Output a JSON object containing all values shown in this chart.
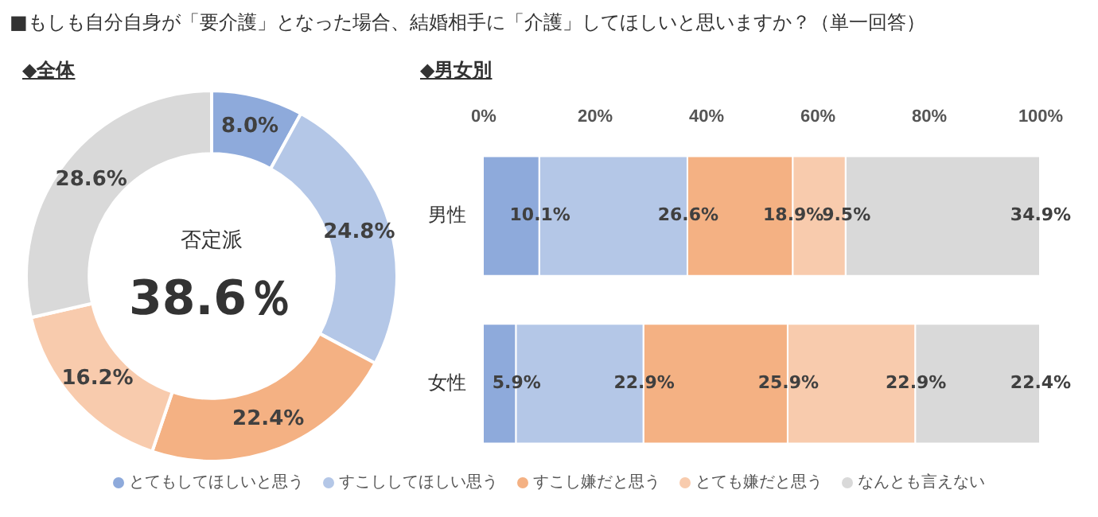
{
  "chart_data": [
    {
      "type": "donut",
      "title": "■もしも自分自身が「要介護」となった場合、結婚相手に「介護」してほしいと思いますか？（単一回答）",
      "subtitle": "◆全体",
      "categories": [
        "とてもしてほしいと思う",
        "すこししてほしい思う",
        "すこし嫌だと思う",
        "とても嫌だと思う",
        "なんとも言えない"
      ],
      "values": [
        8.0,
        24.8,
        22.4,
        16.2,
        28.6
      ],
      "colors": [
        "#8eaadb",
        "#b4c7e7",
        "#f4b183",
        "#f8cbad",
        "#d9d9d9"
      ],
      "value_labels": [
        "8.0%",
        "24.8%",
        "22.4%",
        "16.2%",
        "28.6%"
      ],
      "annotations": [
        "否定派",
        "38.6％"
      ],
      "legend": "bottom"
    },
    {
      "type": "bar",
      "orientation": "horizontal",
      "stacked": true,
      "title": "◆男女別",
      "categories": [
        "男性",
        "女性"
      ],
      "series": [
        {
          "color": "#8eaadb",
          "values": [
            10.1,
            5.9
          ],
          "value_labels": [
            "10.1%",
            "5.9%"
          ]
        },
        {
          "color": "#b4c7e7",
          "values": [
            26.6,
            22.9
          ],
          "value_labels": [
            "26.6%",
            "22.9%"
          ]
        },
        {
          "color": "#f4b183",
          "values": [
            18.9,
            25.9
          ],
          "value_labels": [
            "18.9%",
            "25.9%"
          ]
        },
        {
          "color": "#f8cbad",
          "values": [
            9.5,
            22.9
          ],
          "value_labels": [
            "9.5%",
            "22.9%"
          ]
        },
        {
          "color": "#d9d9d9",
          "values": [
            34.9,
            22.4
          ],
          "value_labels": [
            "34.9%",
            "22.4%"
          ]
        }
      ],
      "xlim": [
        0,
        100
      ],
      "xticks": [
        {
          "value": 0,
          "label": "0%"
        },
        {
          "value": 20,
          "label": "20%"
        },
        {
          "value": 40,
          "label": "40%"
        },
        {
          "value": 60,
          "label": "60%"
        },
        {
          "value": 80,
          "label": "80%"
        },
        {
          "value": 100,
          "label": "100%"
        }
      ]
    }
  ]
}
